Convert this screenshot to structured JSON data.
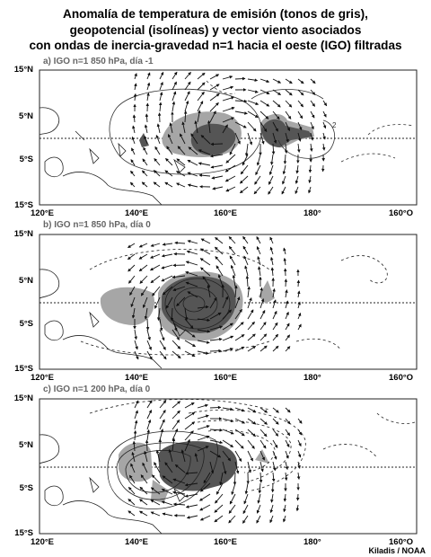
{
  "title_lines": [
    "Anomalía de temperatura de emisión (tonos de gris),",
    "geopotencial (isolíneas) y vector viento asociados",
    "con ondas de inercia-gravedad n=1 hacia el oeste (IGO) filtradas"
  ],
  "panels": [
    {
      "label": "a) IGO n=1 850 hPa, día -1"
    },
    {
      "label": "b) IGO n=1 850 hPa, día 0"
    },
    {
      "label": "c) IGO n=1 200 hPa, día 0"
    }
  ],
  "lat_labels": [
    "15°N",
    "5°N",
    "5°S",
    "15°S"
  ],
  "lon_labels": [
    "120°E",
    "140°E",
    "160°E",
    "180°",
    "160°O"
  ],
  "contour_label": "2",
  "credit": "Kiladis / NOAA",
  "colors": {
    "dark_shade": "#555555",
    "light_shade": "#a6a6a6",
    "line": "#222222"
  }
}
